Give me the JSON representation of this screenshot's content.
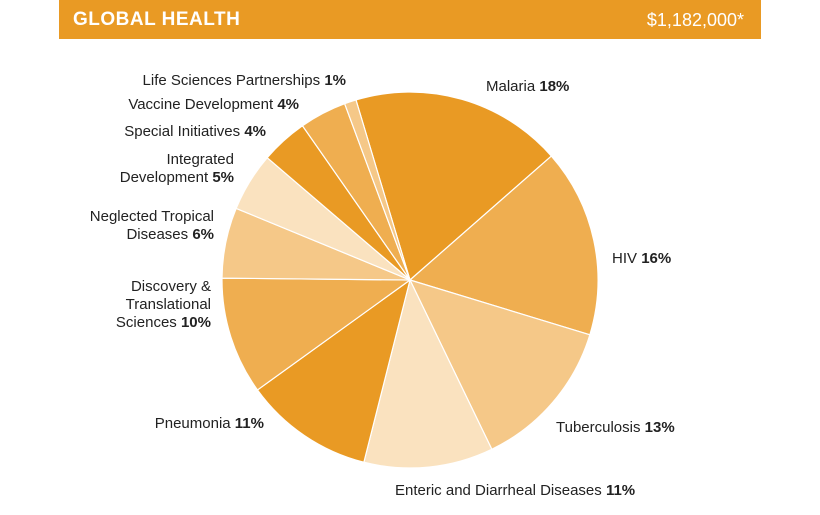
{
  "header": {
    "title": "GLOBAL HEALTH",
    "amount": "$1,182,000*"
  },
  "colors": {
    "header_bg": "#e99a24"
  },
  "chart_data": {
    "type": "pie",
    "title": "GLOBAL HEALTH",
    "subtitle": "$1,182,000*",
    "unit": "%",
    "slices": [
      {
        "name": "Malaria",
        "value": 18,
        "color": "#e99a24"
      },
      {
        "name": "HIV",
        "value": 16,
        "color": "#efae50"
      },
      {
        "name": "Tuberculosis",
        "value": 13,
        "color": "#f5c888"
      },
      {
        "name": "Enteric and Diarrheal Diseases",
        "value": 11,
        "color": "#fae2bf"
      },
      {
        "name": "Pneumonia",
        "value": 11,
        "color": "#e99a24"
      },
      {
        "name": "Discovery & Translational Sciences",
        "value": 10,
        "color": "#efae50"
      },
      {
        "name": "Neglected Tropical Diseases",
        "value": 6,
        "color": "#f5c888"
      },
      {
        "name": "Integrated Development",
        "value": 5,
        "color": "#fae2bf"
      },
      {
        "name": "Special Initiatives",
        "value": 4,
        "color": "#e99a24"
      },
      {
        "name": "Vaccine Development",
        "value": 4,
        "color": "#efae50"
      },
      {
        "name": "Life Sciences Partnerships",
        "value": 1,
        "color": "#f5c888"
      }
    ],
    "labels": [
      {
        "lines": [
          "Malaria"
        ],
        "pct": "18%"
      },
      {
        "lines": [
          "HIV"
        ],
        "pct": "16%"
      },
      {
        "lines": [
          "Tuberculosis"
        ],
        "pct": "13%"
      },
      {
        "lines": [
          "Enteric and Diarrheal Diseases"
        ],
        "pct": "11%"
      },
      {
        "lines": [
          "Pneumonia"
        ],
        "pct": "11%"
      },
      {
        "lines": [
          "Discovery &",
          "Translational",
          "Sciences"
        ],
        "pct": "10%"
      },
      {
        "lines": [
          "Neglected Tropical",
          "Diseases"
        ],
        "pct": "6%"
      },
      {
        "lines": [
          "Integrated",
          "Development"
        ],
        "pct": "5%"
      },
      {
        "lines": [
          "Special Initiatives"
        ],
        "pct": "4%"
      },
      {
        "lines": [
          "Vaccine Development"
        ],
        "pct": "4%"
      },
      {
        "lines": [
          "Life Sciences Partnerships"
        ],
        "pct": "1%"
      }
    ]
  }
}
